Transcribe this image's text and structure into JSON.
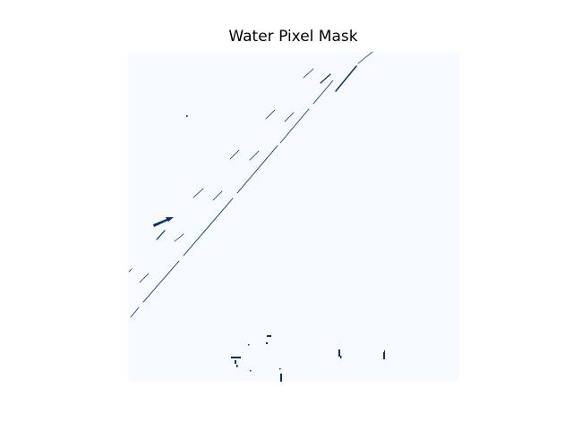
{
  "chart_data": {
    "type": "heatmap",
    "title": "Water Pixel Mask",
    "xlabel": "",
    "ylabel": "",
    "axes_visible": false,
    "colormap": "Blues",
    "background_color": "#f7fbff",
    "mask_color": "#08306b",
    "values": {
      "background": 0,
      "water": 1
    },
    "description_of_features": []
  }
}
